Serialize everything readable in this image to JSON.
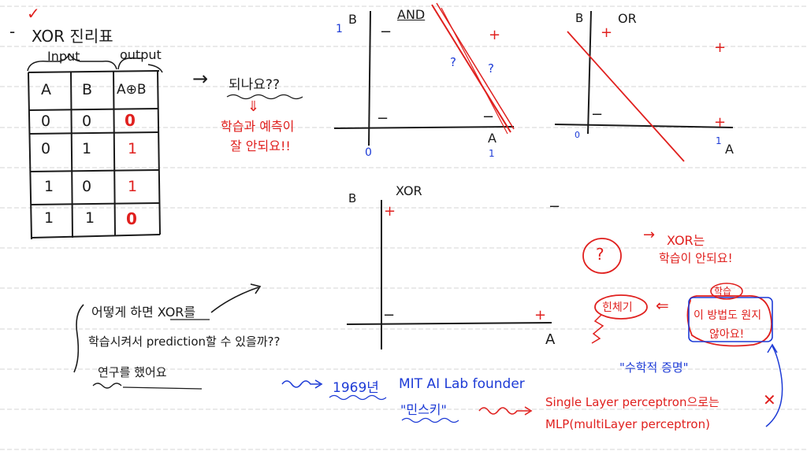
{
  "colors": {
    "ink": "#1a1a1a",
    "red": "#e0201e",
    "blue": "#1d3bd6",
    "rule": "#d4d4d4"
  },
  "top_check": "✓",
  "truth_table": {
    "title": "XOR 진리표",
    "bullet": "-",
    "input_label": "Input",
    "output_label": "output",
    "headers": [
      "A",
      "B",
      "A⊕B"
    ],
    "rows": [
      [
        "0",
        "0",
        "0"
      ],
      [
        "0",
        "1",
        "1"
      ],
      [
        "1",
        "0",
        "1"
      ],
      [
        "1",
        "1",
        "0"
      ]
    ]
  },
  "note_right": {
    "arrow": "→",
    "question": "되나요??",
    "down_arrow": "⇓",
    "line1": "학습과 예측이",
    "line2": "잘 안되요!!"
  },
  "and_plot": {
    "title": "AND",
    "y_axis": "B",
    "x_axis": "A",
    "origin": "0",
    "one_x": "1",
    "one_y": "1",
    "points": [
      "−",
      "+",
      "−",
      "−"
    ],
    "question_marks": [
      "?",
      "?"
    ]
  },
  "or_plot": {
    "title": "OR",
    "y_axis": "B",
    "x_axis": "A",
    "origin": "0",
    "one_x": "1",
    "points": [
      "+",
      "+",
      "−",
      "+"
    ]
  },
  "xor_plot": {
    "title": "XOR",
    "y_axis": "B",
    "x_axis": "A",
    "points": [
      "+",
      "−",
      "−",
      "+"
    ]
  },
  "question_note": {
    "line1": "어떻게 하면 XOR를",
    "line2": "학습시켜서 prediction할 수 있을까??",
    "line3": "연구를 했어요"
  },
  "circle_question": "?",
  "xor_note": {
    "arrow": "→",
    "text1": "XOR는",
    "text2": "학습이 안되요!"
  },
  "giveup": {
    "label": "힌체기",
    "arrow": "⇐",
    "tag": "학습",
    "line1": "이 방법도 원지",
    "line2": "않아요!"
  },
  "history": {
    "squiggle": "~",
    "year": "1969년",
    "lab": "MIT AI Lab founder",
    "person": "\"민스키\"",
    "proof": "\"수학적 증명\"",
    "slp": "Single Layer perceptron으로는",
    "cross": "✕",
    "mlp": "MLP(multiLayer perceptron)"
  }
}
